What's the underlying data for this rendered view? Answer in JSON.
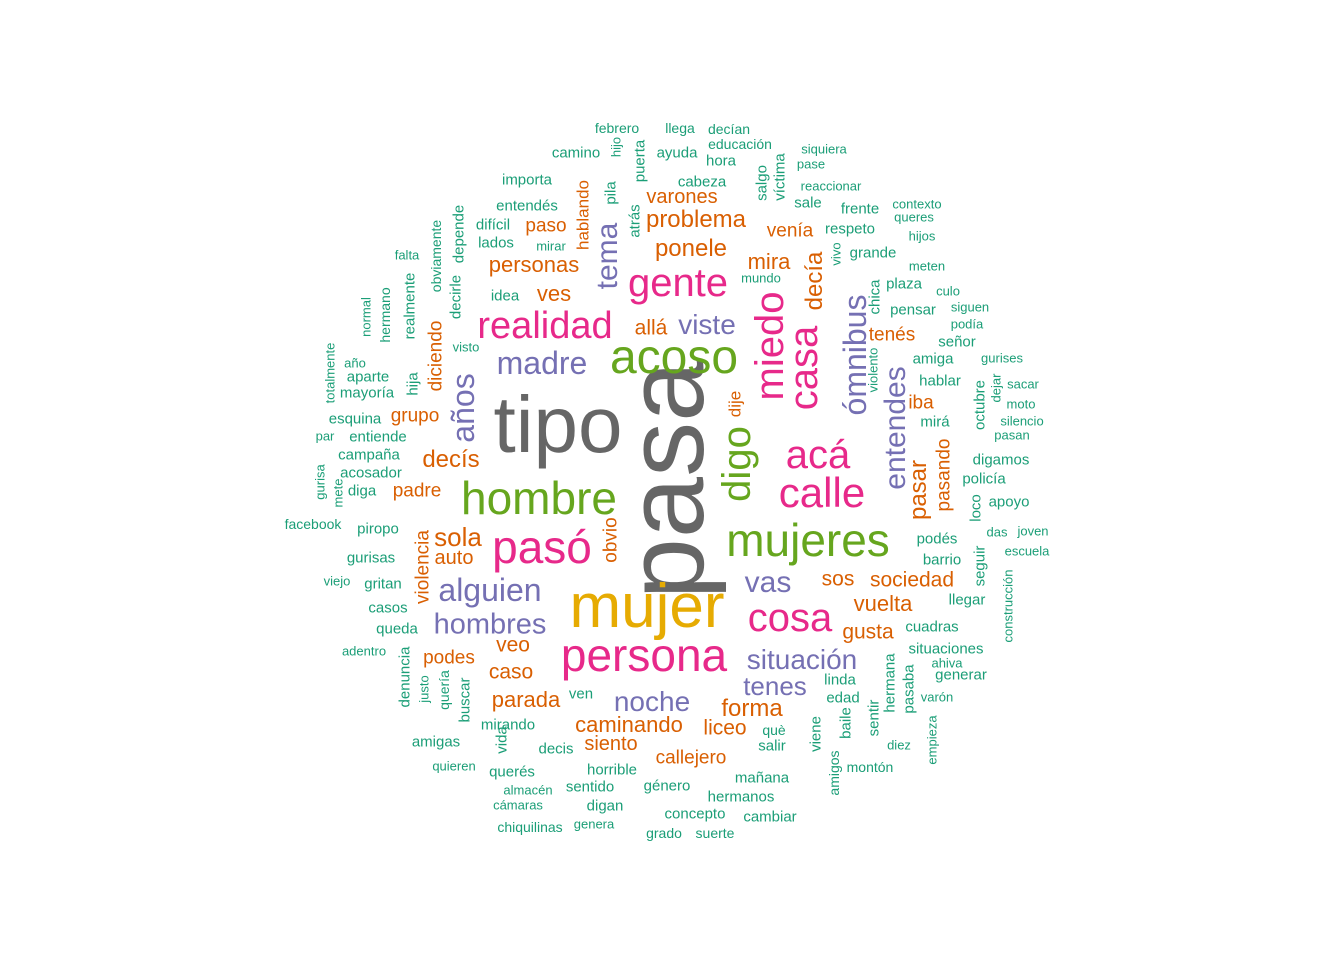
{
  "palette": {
    "grey": "#666666",
    "orange": "#d95f02",
    "green": "#1b9e77",
    "purple": "#7570b3",
    "pink": "#e7298a",
    "olive": "#66a61e",
    "gold": "#e6ab02"
  },
  "words": [
    {
      "text": "pasa",
      "color": "grey",
      "rot": true
    },
    {
      "text": "tipo",
      "color": "grey"
    },
    {
      "text": "mujer",
      "color": "gold"
    },
    {
      "text": "acoso",
      "color": "olive"
    },
    {
      "text": "hombre",
      "color": "olive"
    },
    {
      "text": "mujeres",
      "color": "olive"
    },
    {
      "text": "persona",
      "color": "pink"
    },
    {
      "text": "pasó",
      "color": "pink"
    },
    {
      "text": "gente",
      "color": "pink"
    },
    {
      "text": "realidad",
      "color": "pink"
    },
    {
      "text": "calle",
      "color": "pink"
    },
    {
      "text": "acá",
      "color": "pink"
    },
    {
      "text": "cosa",
      "color": "pink"
    },
    {
      "text": "miedo",
      "color": "pink",
      "rot": true
    },
    {
      "text": "casa",
      "color": "pink",
      "rot": true
    },
    {
      "text": "digo",
      "color": "olive",
      "rot": true
    },
    {
      "text": "madre",
      "color": "purple"
    },
    {
      "text": "alguien",
      "color": "purple"
    },
    {
      "text": "hombres",
      "color": "purple"
    },
    {
      "text": "noche",
      "color": "purple"
    },
    {
      "text": "situación",
      "color": "purple"
    },
    {
      "text": "vas",
      "color": "purple"
    },
    {
      "text": "viste",
      "color": "purple"
    },
    {
      "text": "tenes",
      "color": "purple"
    },
    {
      "text": "años",
      "color": "purple",
      "rot": true
    },
    {
      "text": "tema",
      "color": "purple",
      "rot": true
    },
    {
      "text": "ómnibus",
      "color": "purple",
      "rot": true
    },
    {
      "text": "entendes",
      "color": "purple",
      "rot": true
    },
    {
      "text": "problema",
      "color": "orange"
    },
    {
      "text": "ponele",
      "color": "orange"
    },
    {
      "text": "personas",
      "color": "orange"
    },
    {
      "text": "decís",
      "color": "orange"
    },
    {
      "text": "sola",
      "color": "orange"
    },
    {
      "text": "forma",
      "color": "orange"
    },
    {
      "text": "vuelta",
      "color": "orange"
    },
    {
      "text": "sociedad",
      "color": "orange"
    },
    {
      "text": "caminando",
      "color": "orange"
    },
    {
      "text": "parada",
      "color": "orange"
    },
    {
      "text": "mira",
      "color": "orange"
    },
    {
      "text": "ves",
      "color": "orange"
    },
    {
      "text": "allá",
      "color": "orange"
    },
    {
      "text": "varones",
      "color": "orange"
    },
    {
      "text": "paso",
      "color": "orange"
    },
    {
      "text": "venía",
      "color": "orange"
    },
    {
      "text": "tenés",
      "color": "orange"
    },
    {
      "text": "iba",
      "color": "orange"
    },
    {
      "text": "grupo",
      "color": "orange"
    },
    {
      "text": "padre",
      "color": "orange"
    },
    {
      "text": "auto",
      "color": "orange"
    },
    {
      "text": "sos",
      "color": "orange"
    },
    {
      "text": "gusta",
      "color": "orange"
    },
    {
      "text": "veo",
      "color": "orange"
    },
    {
      "text": "caso",
      "color": "orange"
    },
    {
      "text": "podes",
      "color": "orange"
    },
    {
      "text": "liceo",
      "color": "orange"
    },
    {
      "text": "siento",
      "color": "orange"
    },
    {
      "text": "callejero",
      "color": "orange"
    },
    {
      "text": "decía",
      "color": "orange",
      "rot": true
    },
    {
      "text": "pasar",
      "color": "orange",
      "rot": true
    },
    {
      "text": "pasando",
      "color": "orange",
      "rot": true
    },
    {
      "text": "diciendo",
      "color": "orange",
      "rot": true
    },
    {
      "text": "violencia",
      "color": "orange",
      "rot": true
    },
    {
      "text": "obvio",
      "color": "orange",
      "rot": true
    },
    {
      "text": "dije",
      "color": "orange",
      "rot": true
    },
    {
      "text": "hablando",
      "color": "orange",
      "rot": true
    },
    {
      "text": "febrero",
      "color": "green"
    },
    {
      "text": "llega",
      "color": "green"
    },
    {
      "text": "decían",
      "color": "green"
    },
    {
      "text": "educación",
      "color": "green"
    },
    {
      "text": "camino",
      "color": "green"
    },
    {
      "text": "ayuda",
      "color": "green"
    },
    {
      "text": "hora",
      "color": "green"
    },
    {
      "text": "siquiera",
      "color": "green"
    },
    {
      "text": "pase",
      "color": "green"
    },
    {
      "text": "importa",
      "color": "green"
    },
    {
      "text": "cabeza",
      "color": "green"
    },
    {
      "text": "reaccionar",
      "color": "green"
    },
    {
      "text": "entendés",
      "color": "green"
    },
    {
      "text": "sale",
      "color": "green"
    },
    {
      "text": "contexto",
      "color": "green"
    },
    {
      "text": "frente",
      "color": "green"
    },
    {
      "text": "queres",
      "color": "green"
    },
    {
      "text": "difícil",
      "color": "green"
    },
    {
      "text": "respeto",
      "color": "green"
    },
    {
      "text": "hijos",
      "color": "green"
    },
    {
      "text": "lados",
      "color": "green"
    },
    {
      "text": "mirar",
      "color": "green"
    },
    {
      "text": "grande",
      "color": "green"
    },
    {
      "text": "falta",
      "color": "green"
    },
    {
      "text": "meten",
      "color": "green"
    },
    {
      "text": "mundo",
      "color": "green"
    },
    {
      "text": "plaza",
      "color": "green"
    },
    {
      "text": "culo",
      "color": "green"
    },
    {
      "text": "idea",
      "color": "green"
    },
    {
      "text": "pensar",
      "color": "green"
    },
    {
      "text": "siguen",
      "color": "green"
    },
    {
      "text": "podía",
      "color": "green"
    },
    {
      "text": "señor",
      "color": "green"
    },
    {
      "text": "visto",
      "color": "green"
    },
    {
      "text": "año",
      "color": "green"
    },
    {
      "text": "amiga",
      "color": "green"
    },
    {
      "text": "gurises",
      "color": "green"
    },
    {
      "text": "aparte",
      "color": "green"
    },
    {
      "text": "hablar",
      "color": "green"
    },
    {
      "text": "sacar",
      "color": "green"
    },
    {
      "text": "mayoría",
      "color": "green"
    },
    {
      "text": "moto",
      "color": "green"
    },
    {
      "text": "esquina",
      "color": "green"
    },
    {
      "text": "silencio",
      "color": "green"
    },
    {
      "text": "mirá",
      "color": "green"
    },
    {
      "text": "par",
      "color": "green"
    },
    {
      "text": "entiende",
      "color": "green"
    },
    {
      "text": "pasan",
      "color": "green"
    },
    {
      "text": "campaña",
      "color": "green"
    },
    {
      "text": "digamos",
      "color": "green"
    },
    {
      "text": "acosador",
      "color": "green"
    },
    {
      "text": "policía",
      "color": "green"
    },
    {
      "text": "diga",
      "color": "green"
    },
    {
      "text": "apoyo",
      "color": "green"
    },
    {
      "text": "facebook",
      "color": "green"
    },
    {
      "text": "piropo",
      "color": "green"
    },
    {
      "text": "das",
      "color": "green"
    },
    {
      "text": "joven",
      "color": "green"
    },
    {
      "text": "podés",
      "color": "green"
    },
    {
      "text": "escuela",
      "color": "green"
    },
    {
      "text": "gurisas",
      "color": "green"
    },
    {
      "text": "barrio",
      "color": "green"
    },
    {
      "text": "viejo",
      "color": "green"
    },
    {
      "text": "gritan",
      "color": "green"
    },
    {
      "text": "llegar",
      "color": "green"
    },
    {
      "text": "casos",
      "color": "green"
    },
    {
      "text": "queda",
      "color": "green"
    },
    {
      "text": "cuadras",
      "color": "green"
    },
    {
      "text": "adentro",
      "color": "green"
    },
    {
      "text": "situaciones",
      "color": "green"
    },
    {
      "text": "ahiva",
      "color": "green"
    },
    {
      "text": "generar",
      "color": "green"
    },
    {
      "text": "linda",
      "color": "green"
    },
    {
      "text": "edad",
      "color": "green"
    },
    {
      "text": "ven",
      "color": "green"
    },
    {
      "text": "varón",
      "color": "green"
    },
    {
      "text": "mirando",
      "color": "green"
    },
    {
      "text": "què",
      "color": "green"
    },
    {
      "text": "amigas",
      "color": "green"
    },
    {
      "text": "decis",
      "color": "green"
    },
    {
      "text": "salir",
      "color": "green"
    },
    {
      "text": "diez",
      "color": "green"
    },
    {
      "text": "quieren",
      "color": "green"
    },
    {
      "text": "horrible",
      "color": "green"
    },
    {
      "text": "montón",
      "color": "green"
    },
    {
      "text": "querés",
      "color": "green"
    },
    {
      "text": "mañana",
      "color": "green"
    },
    {
      "text": "almacén",
      "color": "green"
    },
    {
      "text": "sentido",
      "color": "green"
    },
    {
      "text": "género",
      "color": "green"
    },
    {
      "text": "hermanos",
      "color": "green"
    },
    {
      "text": "cámaras",
      "color": "green"
    },
    {
      "text": "digan",
      "color": "green"
    },
    {
      "text": "concepto",
      "color": "green"
    },
    {
      "text": "cambiar",
      "color": "green"
    },
    {
      "text": "chiquilinas",
      "color": "green"
    },
    {
      "text": "genera",
      "color": "green"
    },
    {
      "text": "grado",
      "color": "green"
    },
    {
      "text": "suerte",
      "color": "green"
    },
    {
      "text": "hijo",
      "color": "green",
      "rot": true
    },
    {
      "text": "puerta",
      "color": "green",
      "rot": true
    },
    {
      "text": "pila",
      "color": "green",
      "rot": true
    },
    {
      "text": "atrás",
      "color": "green",
      "rot": true
    },
    {
      "text": "salgo",
      "color": "green",
      "rot": true
    },
    {
      "text": "víctima",
      "color": "green",
      "rot": true
    },
    {
      "text": "vivo",
      "color": "green",
      "rot": true
    },
    {
      "text": "chica",
      "color": "green",
      "rot": true
    },
    {
      "text": "violento",
      "color": "green",
      "rot": true
    },
    {
      "text": "depende",
      "color": "green",
      "rot": true
    },
    {
      "text": "obviamente",
      "color": "green",
      "rot": true
    },
    {
      "text": "decirle",
      "color": "green",
      "rot": true
    },
    {
      "text": "realmente",
      "color": "green",
      "rot": true
    },
    {
      "text": "hermano",
      "color": "green",
      "rot": true
    },
    {
      "text": "normal",
      "color": "green",
      "rot": true
    },
    {
      "text": "totalmente",
      "color": "green",
      "rot": true
    },
    {
      "text": "hija",
      "color": "green",
      "rot": true
    },
    {
      "text": "gurisa",
      "color": "green",
      "rot": true
    },
    {
      "text": "mete",
      "color": "green",
      "rot": true
    },
    {
      "text": "octubre",
      "color": "green",
      "rot": true
    },
    {
      "text": "dejar",
      "color": "green",
      "rot": true
    },
    {
      "text": "loco",
      "color": "green",
      "rot": true
    },
    {
      "text": "seguir",
      "color": "green",
      "rot": true
    },
    {
      "text": "construcción",
      "color": "green",
      "rot": true
    },
    {
      "text": "denuncia",
      "color": "green",
      "rot": true
    },
    {
      "text": "justo",
      "color": "green",
      "rot": true
    },
    {
      "text": "quería",
      "color": "green",
      "rot": true
    },
    {
      "text": "buscar",
      "color": "green",
      "rot": true
    },
    {
      "text": "vida",
      "color": "green",
      "rot": true
    },
    {
      "text": "hermana",
      "color": "green",
      "rot": true
    },
    {
      "text": "pasaba",
      "color": "green",
      "rot": true
    },
    {
      "text": "sentir",
      "color": "green",
      "rot": true
    },
    {
      "text": "baile",
      "color": "green",
      "rot": true
    },
    {
      "text": "viene",
      "color": "green",
      "rot": true
    },
    {
      "text": "amigos",
      "color": "green",
      "rot": true
    },
    {
      "text": "empieza",
      "color": "green",
      "rot": true
    }
  ]
}
